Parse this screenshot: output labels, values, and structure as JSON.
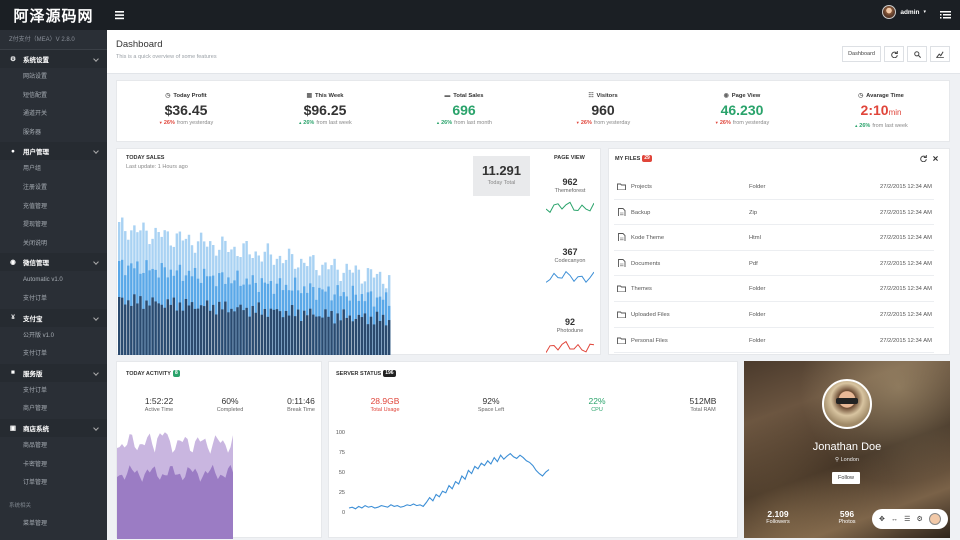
{
  "brand": "阿泽源码网",
  "topbar": {
    "user": "admin",
    "caret": "▾"
  },
  "sidebar": {
    "version": "Z付支付（MEA）V 2.8.0",
    "groups": [
      {
        "label": "系统设置",
        "items": [
          "网站设置",
          "短信配置",
          "通道开关",
          "服务器"
        ]
      },
      {
        "label": "用户管理",
        "items": [
          "用户组",
          "注册设置",
          "充值管理",
          "提现管理",
          "关闭说明"
        ]
      },
      {
        "label": "微信管理",
        "items": [
          "Automatic v1.0",
          "支付订单"
        ]
      },
      {
        "label": "支付宝",
        "items": [
          "公开版 v1.0",
          "支付订单"
        ]
      },
      {
        "label": "服务版",
        "items": [
          "支付订单",
          "商户管理"
        ]
      },
      {
        "label": "商店系统",
        "items": [
          "商品管理",
          "卡密管理",
          "订单管理"
        ]
      }
    ],
    "section2": "系统相关",
    "last_group": "菜单管理"
  },
  "page": {
    "title": "Dashboard",
    "subtitle": "This is a quick overview of some features",
    "button": "Dashboard"
  },
  "stats": [
    {
      "label": "Today Profit",
      "value": "$36.45",
      "unit": "",
      "trend": "down",
      "pct": "26%",
      "from": "from yesterday",
      "color": "#333333"
    },
    {
      "label": "This Week",
      "value": "$96.25",
      "unit": "",
      "trend": "up",
      "pct": "26%",
      "from": "from last week",
      "color": "#333333"
    },
    {
      "label": "Total Sales",
      "value": "696",
      "unit": "",
      "trend": "up",
      "pct": "26%",
      "from": "from last month",
      "color": "#2aa36b"
    },
    {
      "label": "Visitors",
      "value": "960",
      "unit": "",
      "trend": "down",
      "pct": "26%",
      "from": "from yesterday",
      "color": "#333333"
    },
    {
      "label": "Page View",
      "value": "46.230",
      "unit": "",
      "trend": "down",
      "pct": "26%",
      "from": "from yesterday",
      "color": "#2aa36b"
    },
    {
      "label": "Avarage Time",
      "value": "2:10",
      "unit": "min",
      "trend": "up",
      "pct": "26%",
      "from": "from last week",
      "color": "#e0453a"
    }
  ],
  "sales": {
    "title": "TODAY SALES",
    "updated": "Last update: 1 Hours ago",
    "total": "11.291",
    "total_label": "Today Total",
    "pageview_title": "PAGE VIEW",
    "pageviews": [
      {
        "value": "962",
        "label": "Themeforest",
        "color": "#2aa36b"
      },
      {
        "value": "367",
        "label": "Codecanyon",
        "color": "#3d8fd6"
      },
      {
        "value": "92",
        "label": "Photodune",
        "color": "#e0453a"
      }
    ]
  },
  "files": {
    "title": "MY FILES",
    "count": "29",
    "rows": [
      {
        "name": "Projects",
        "type": "Folder",
        "date": "27/2/2015 12:34 AM",
        "icon": "folder-icon"
      },
      {
        "name": "Backup",
        "type": "Zip",
        "date": "27/2/2015 12:34 AM",
        "icon": "zip-file-icon"
      },
      {
        "name": "Kode Theme",
        "type": "Html",
        "date": "27/2/2015 12:34 AM",
        "icon": "html-file-icon"
      },
      {
        "name": "Documents",
        "type": "Pdf",
        "date": "27/2/2015 12:34 AM",
        "icon": "pdf-file-icon"
      },
      {
        "name": "Themes",
        "type": "Folder",
        "date": "27/2/2015 12:34 AM",
        "icon": "folder-icon"
      },
      {
        "name": "Uploaded Files",
        "type": "Folder",
        "date": "27/2/2015 12:34 AM",
        "icon": "folder-icon"
      },
      {
        "name": "Personal Files",
        "type": "Folder",
        "date": "27/2/2015 12:34 AM",
        "icon": "folder-icon"
      }
    ]
  },
  "activity": {
    "title": "TODAY ACTIVITY",
    "badge": "8",
    "metrics": [
      {
        "value": "1:52:22",
        "label": "Active Time"
      },
      {
        "value": "60%",
        "label": "Completed"
      },
      {
        "value": "0:11:46",
        "label": "Break Time"
      }
    ]
  },
  "server": {
    "title": "SERVER STATUS",
    "badge": "196",
    "metrics": [
      {
        "value": "28.9GB",
        "label": "Total Usage",
        "color": "#e0453a"
      },
      {
        "value": "92%",
        "label": "Space Left",
        "color": "#333333"
      },
      {
        "value": "22%",
        "label": "CPU",
        "color": "#2aa36b"
      },
      {
        "value": "512MB",
        "label": "Total RAM",
        "color": "#333333"
      }
    ]
  },
  "chart_data": {
    "type": "line",
    "series": [
      {
        "values": [
          5,
          6,
          4,
          7,
          5,
          8,
          6,
          7,
          5,
          6,
          8,
          7,
          6,
          9,
          7,
          8,
          6,
          7,
          9,
          8,
          10,
          8,
          9,
          7,
          12,
          18,
          14,
          22,
          19,
          26,
          24,
          33,
          29,
          38,
          35,
          45,
          41,
          52,
          48,
          57,
          54,
          61,
          58,
          64,
          60,
          68,
          63,
          71,
          66,
          70,
          73,
          69,
          67,
          71,
          68,
          64,
          62,
          58,
          52,
          48,
          45,
          50,
          53
        ]
      }
    ],
    "ylim": [
      0,
      100
    ],
    "yticks": [
      "100",
      "75",
      "50",
      "25",
      "0"
    ]
  },
  "profile": {
    "name": "Jonathan Doe",
    "location": "London",
    "button": "Follow",
    "followers": "2.109",
    "followers_label": "Followers",
    "photos": "596",
    "photos_label": "Photos"
  },
  "colors": {
    "sidebar": "#2a2f36",
    "topbar": "#1b1f24",
    "green": "#2aa36b",
    "red": "#e0453a",
    "blue": "#3d8fd6"
  }
}
